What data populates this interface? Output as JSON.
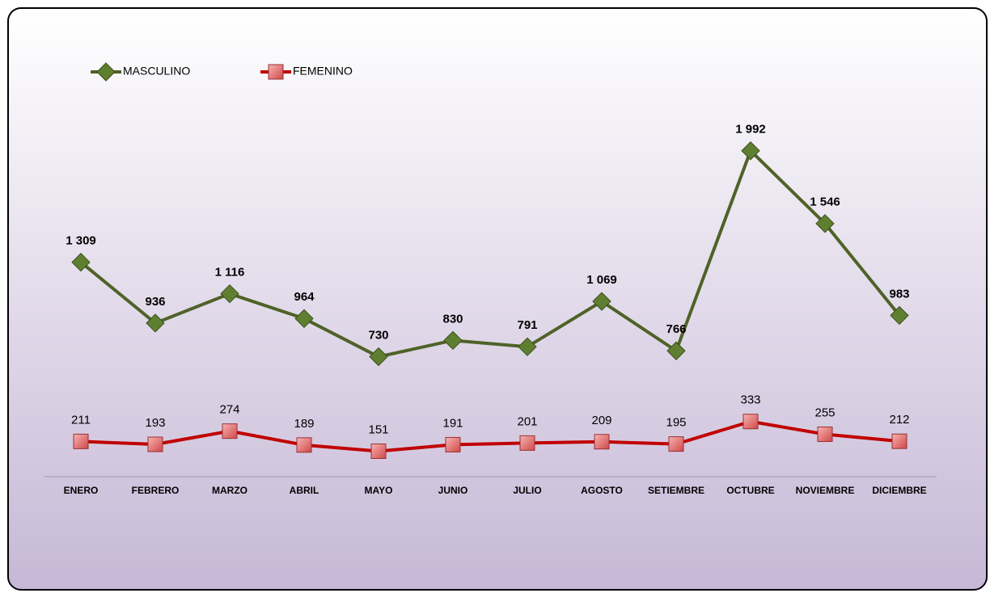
{
  "chart_data": {
    "type": "line",
    "categories": [
      "ENERO",
      "FEBRERO",
      "MARZO",
      "ABRIL",
      "MAYO",
      "JUNIO",
      "JULIO",
      "AGOSTO",
      "SETIEMBRE",
      "OCTUBRE",
      "NOVIEMBRE",
      "DICIEMBRE"
    ],
    "series": [
      {
        "name": "MASCULINO",
        "color": "#4f6228",
        "marker_color": "#5f7f30",
        "values": [
          1309,
          936,
          1116,
          964,
          730,
          830,
          791,
          1069,
          766,
          1992,
          1546,
          983
        ],
        "value_labels": [
          "1 309",
          "936",
          "1 116",
          "964",
          "730",
          "830",
          "791",
          "1 069",
          "766",
          "1 992",
          "1 546",
          "983"
        ]
      },
      {
        "name": "FEMENINO",
        "color": "#c00000",
        "marker_color": "#e36c6c",
        "values": [
          211,
          193,
          274,
          189,
          151,
          191,
          201,
          209,
          195,
          333,
          255,
          212
        ]
      }
    ],
    "ylim": [
      0,
      2500
    ],
    "legend": "top-left"
  }
}
